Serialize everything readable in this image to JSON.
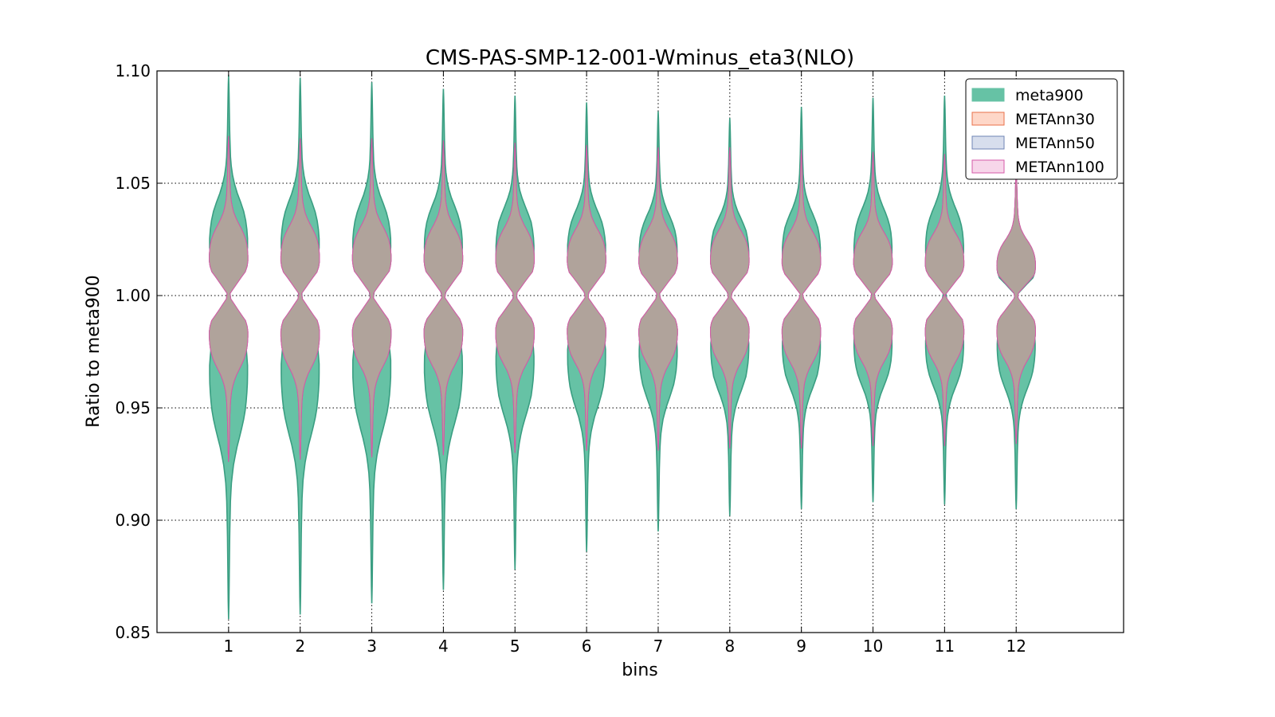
{
  "chart_data": {
    "type": "violin",
    "title": "CMS-PAS-SMP-12-001-Wminus_eta3(NLO)",
    "xlabel": "bins",
    "ylabel": "Ratio to meta900",
    "ylim": [
      0.85,
      1.1
    ],
    "xlim": [
      0,
      13.5
    ],
    "yticks": [
      "0.85",
      "0.90",
      "0.95",
      "1.00",
      "1.05",
      "1.10"
    ],
    "categories": [
      "1",
      "2",
      "3",
      "4",
      "5",
      "6",
      "7",
      "8",
      "9",
      "10",
      "11",
      "12"
    ],
    "grid": true,
    "legend_position": "top-right",
    "series": [
      {
        "name": "meta900",
        "color": "#66c2a5",
        "edge": "#3a9e82",
        "min": [
          0.856,
          0.858,
          0.863,
          0.869,
          0.878,
          0.886,
          0.895,
          0.902,
          0.905,
          0.908,
          0.907,
          0.905
        ],
        "max": [
          1.098,
          1.097,
          1.095,
          1.092,
          1.089,
          1.086,
          1.082,
          1.079,
          1.084,
          1.088,
          1.089,
          1.052
        ],
        "center": [
          1.0,
          1.0,
          1.0,
          1.0,
          1.0,
          1.0,
          1.0,
          1.0,
          1.0,
          1.0,
          1.0,
          1.0
        ]
      },
      {
        "name": "METAnn30",
        "color": "#fc8d62",
        "edge": "#e8704a",
        "min": [
          0.926,
          0.927,
          0.928,
          0.929,
          0.93,
          0.931,
          0.931,
          0.932,
          0.932,
          0.933,
          0.933,
          0.934
        ],
        "max": [
          1.071,
          1.07,
          1.07,
          1.069,
          1.068,
          1.067,
          1.066,
          1.066,
          1.065,
          1.064,
          1.063,
          1.056
        ],
        "center": [
          1.0,
          1.0,
          1.0,
          1.0,
          1.0,
          1.0,
          1.0,
          1.0,
          1.0,
          1.0,
          1.0,
          1.0
        ]
      },
      {
        "name": "METAnn50",
        "color": "#8da0cb",
        "edge": "#6f84b5",
        "min": [
          0.926,
          0.927,
          0.928,
          0.929,
          0.93,
          0.931,
          0.931,
          0.932,
          0.932,
          0.933,
          0.933,
          0.934
        ],
        "max": [
          1.071,
          1.07,
          1.07,
          1.069,
          1.068,
          1.067,
          1.066,
          1.066,
          1.065,
          1.064,
          1.063,
          1.056
        ],
        "center": [
          1.0,
          1.0,
          1.0,
          1.0,
          1.0,
          1.0,
          1.0,
          1.0,
          1.0,
          1.0,
          1.0,
          1.0
        ]
      },
      {
        "name": "METAnn100",
        "color": "#e78ac3",
        "edge": "#d65aa8",
        "min": [
          0.926,
          0.927,
          0.928,
          0.929,
          0.93,
          0.931,
          0.931,
          0.932,
          0.932,
          0.933,
          0.933,
          0.934
        ],
        "max": [
          1.071,
          1.07,
          1.07,
          1.069,
          1.068,
          1.067,
          1.066,
          1.066,
          1.065,
          1.064,
          1.063,
          1.056
        ],
        "center": [
          1.0,
          1.0,
          1.0,
          1.0,
          1.0,
          1.0,
          1.0,
          1.0,
          1.0,
          1.0,
          1.0,
          1.0
        ]
      }
    ],
    "overlap_fill": "#b0a39b"
  }
}
